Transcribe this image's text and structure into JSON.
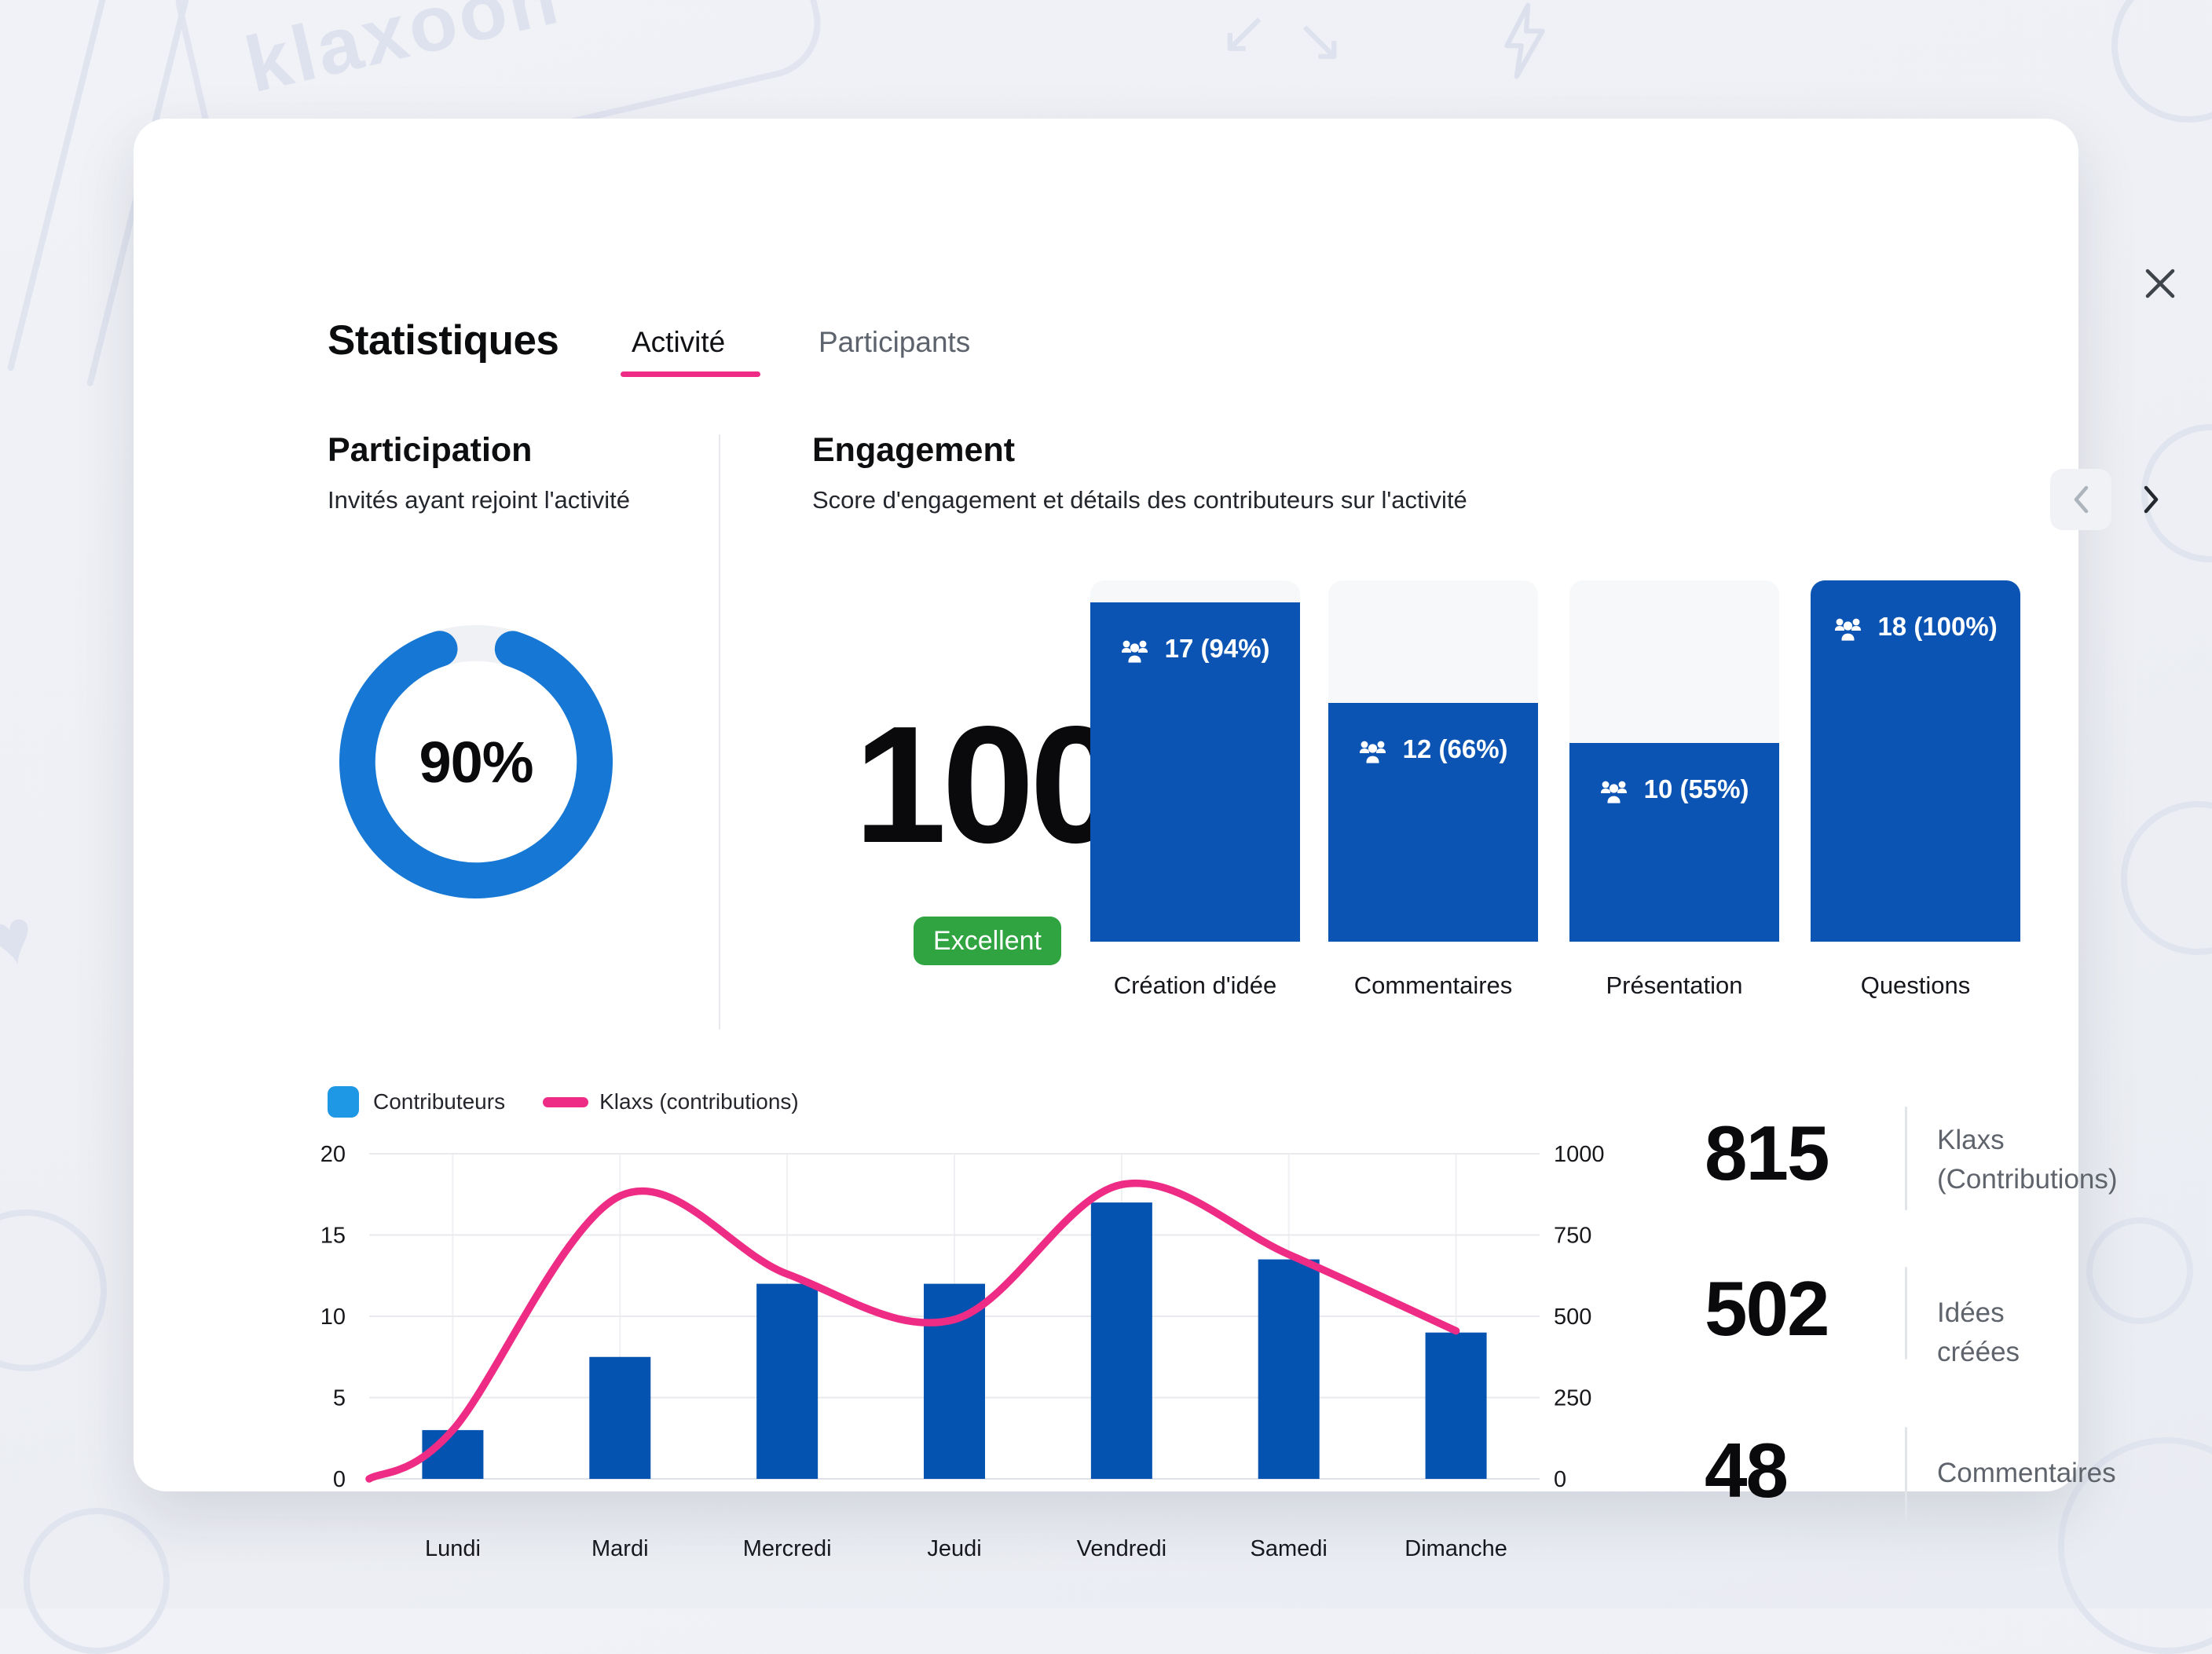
{
  "background": {
    "brand_text": "klaxoon"
  },
  "modal": {
    "title": "Statistiques",
    "close_icon": "✕",
    "tabs": [
      {
        "label": "Activité",
        "active": true
      },
      {
        "label": "Participants",
        "active": false
      }
    ],
    "participation": {
      "title": "Participation",
      "subtitle": "Invités ayant rejoint l'activité",
      "percent": 90,
      "percent_label": "90%",
      "ring_color": "#1678d4",
      "track_color": "#eff1f4"
    },
    "engagement": {
      "title": "Engagement",
      "subtitle": "Score d'engagement et détails des contributeurs sur l'activité",
      "nav": {
        "prev_icon": "‹",
        "next_icon": "›"
      },
      "score": "100",
      "badge_label": "Excellent",
      "badge_color": "#2fa440",
      "bar_color": "#0b54b4",
      "columns": [
        {
          "label": "Création d'idée",
          "count": 17,
          "percent": 94,
          "value_label": "17 (94%)"
        },
        {
          "label": "Commentaires",
          "count": 12,
          "percent": 66,
          "value_label": "12 (66%)"
        },
        {
          "label": "Présentation",
          "count": 10,
          "percent": 55,
          "value_label": "10 (55%)"
        },
        {
          "label": "Questions",
          "count": 18,
          "percent": 100,
          "value_label": "18 (100%)"
        }
      ]
    },
    "stats": [
      {
        "value": "815",
        "label": "Klaxs (Contributions)",
        "label_lines": [
          "Klaxs",
          "(Contributions)"
        ]
      },
      {
        "value": "502",
        "label": "Idées créées",
        "label_lines": [
          "Idées créées",
          ""
        ]
      },
      {
        "value": "48",
        "label": "Commentaires",
        "label_lines": [
          "Commentaires",
          ""
        ]
      }
    ]
  },
  "chart_data": {
    "type": "bar",
    "subtype": "combo bar+line, dual axis",
    "categories": [
      "Lundi",
      "Mardi",
      "Mercredi",
      "Jeudi",
      "Vendredi",
      "Samedi",
      "Dimanche"
    ],
    "series": [
      {
        "name": "Contributeurs",
        "type": "bar",
        "axis": "left",
        "color": "#0553b1",
        "values": [
          3,
          7.5,
          12,
          12,
          17,
          13.5,
          9
        ]
      },
      {
        "name": "Klaxs (contributions)",
        "type": "line",
        "axis": "right",
        "color": "#ee2b85",
        "values": [
          150,
          870,
          630,
          490,
          905,
          690,
          455
        ],
        "starts_at_origin": true
      }
    ],
    "left_axis": {
      "ticks": [
        0,
        5,
        10,
        15,
        20
      ],
      "range": [
        0,
        20
      ]
    },
    "right_axis": {
      "ticks": [
        0,
        250,
        500,
        750,
        1000
      ],
      "range": [
        0,
        1000
      ]
    },
    "grid": true,
    "legend_position": "top-left",
    "legend": [
      {
        "label": "Contributeurs",
        "swatch": "square",
        "color": "#1e97e4"
      },
      {
        "label": "Klaxs (contributions)",
        "swatch": "line",
        "color": "#ee2b85"
      }
    ],
    "title": ""
  }
}
